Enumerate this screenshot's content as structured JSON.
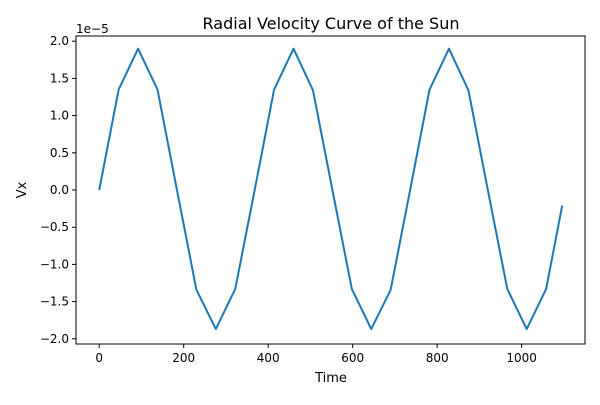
{
  "chart_data": {
    "type": "line",
    "title": "Radial Velocity Curve of the Sun",
    "xlabel": "Time",
    "ylabel": "Vx",
    "y_offset_label": "1e−5",
    "xlim": [
      -55,
      1150
    ],
    "ylim": [
      -2.07e-05,
      2.07e-05
    ],
    "xticks": [
      0,
      200,
      400,
      600,
      800,
      1000
    ],
    "xtick_labels": [
      "0",
      "200",
      "400",
      "600",
      "800",
      "1000"
    ],
    "yticks": [
      -2e-05,
      -1.5e-05,
      -1e-05,
      -5e-06,
      0,
      5e-06,
      1e-05,
      1.5e-05,
      2e-05
    ],
    "ytick_labels": [
      "−2.0",
      "−1.5",
      "−1.0",
      "−0.5",
      "0.0",
      "0.5",
      "1.0",
      "1.5",
      "2.0"
    ],
    "grid": false,
    "legend": "none",
    "series": [
      {
        "color": "#1f77b4",
        "x": [
          0,
          46,
          92,
          138,
          184,
          230,
          276,
          322,
          368,
          414,
          460,
          506,
          552,
          598,
          644,
          690,
          736,
          782,
          828,
          874,
          920,
          966,
          1012,
          1058,
          1096
        ],
        "values": [
          0,
          1.35e-05,
          1.9e-05,
          1.35e-05,
          0,
          -1.34e-05,
          -1.87e-05,
          -1.33e-05,
          0,
          1.35e-05,
          1.9e-05,
          1.34e-05,
          0,
          -1.33e-05,
          -1.87e-05,
          -1.34e-05,
          0,
          1.35e-05,
          1.9e-05,
          1.34e-05,
          0,
          -1.33e-05,
          -1.87e-05,
          -1.33e-05,
          -2.1e-06
        ]
      }
    ]
  }
}
